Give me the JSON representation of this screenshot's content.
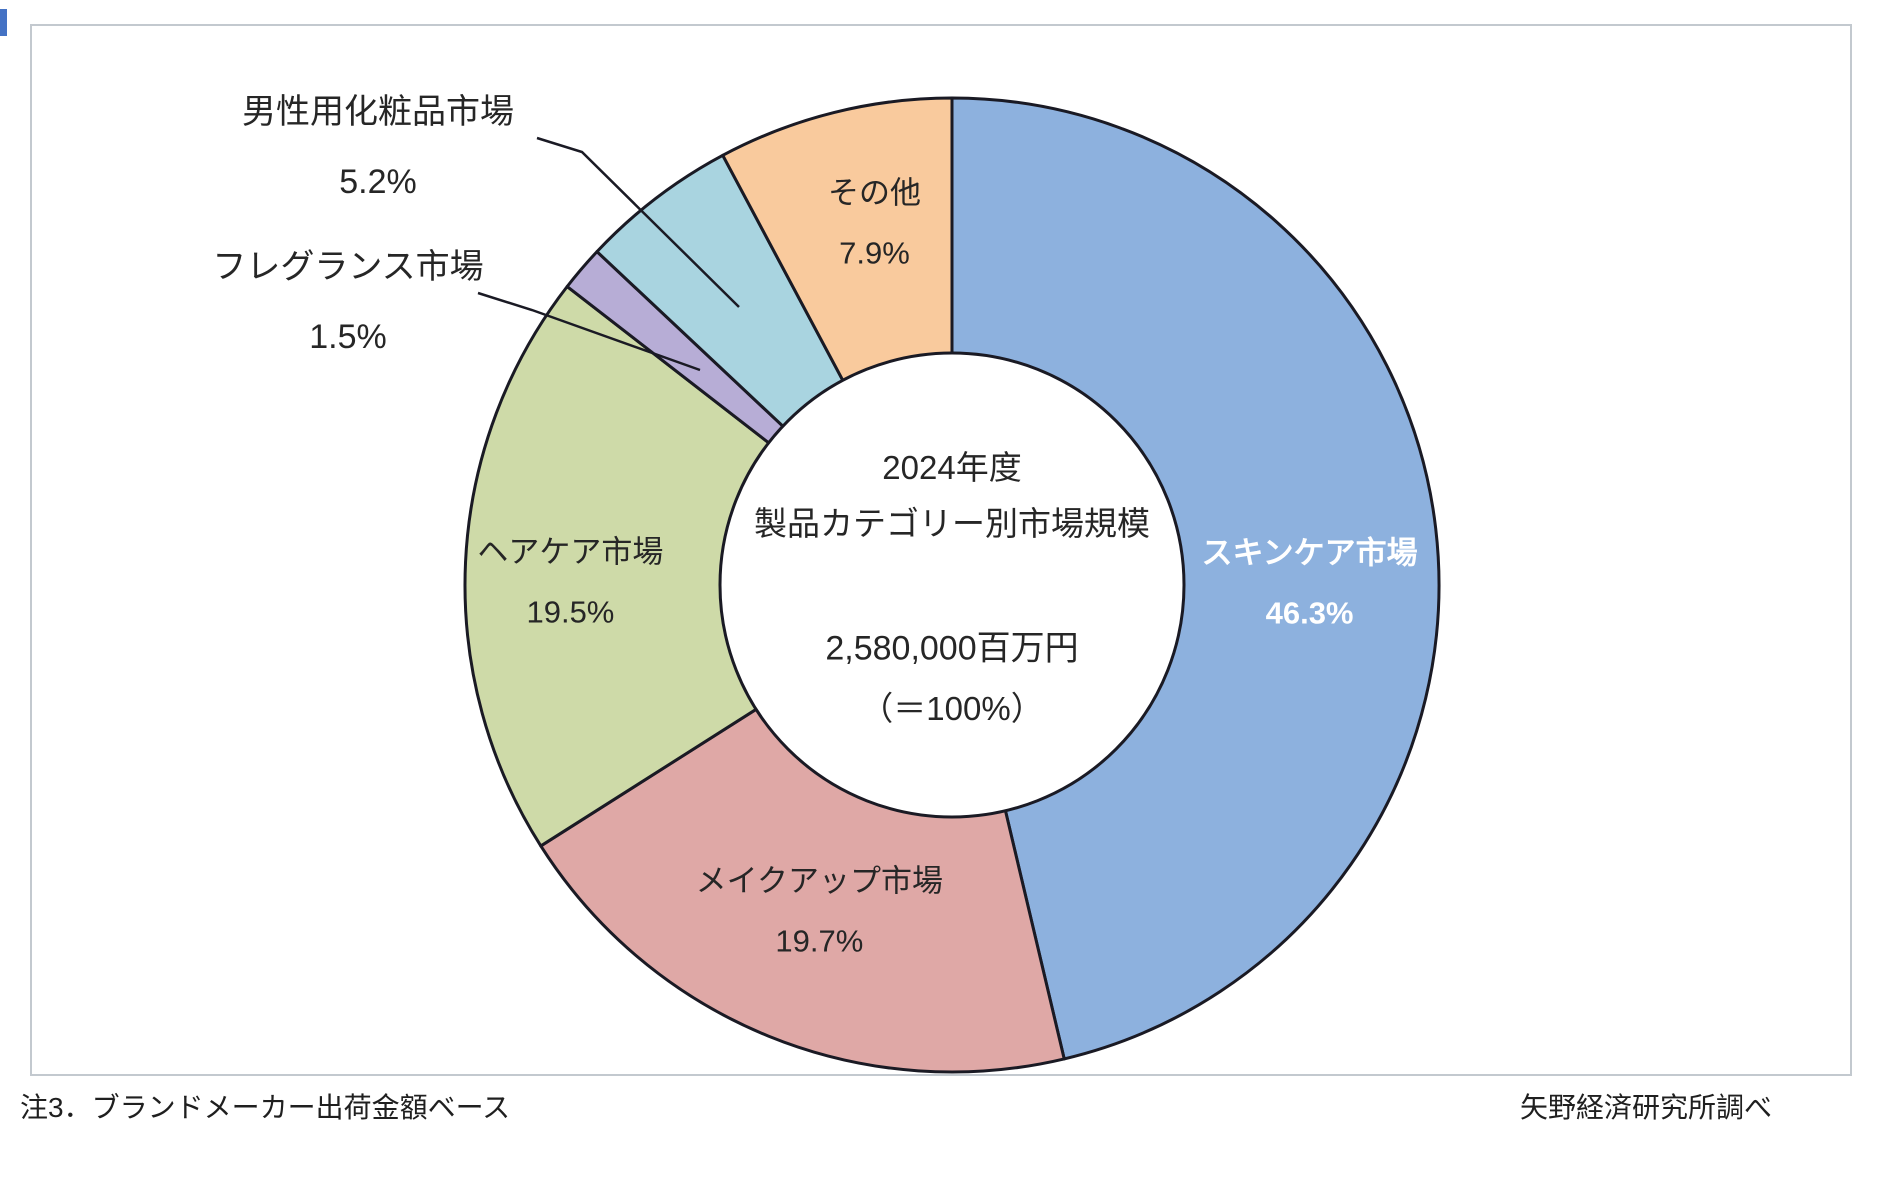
{
  "page": {
    "background": "#ffffff"
  },
  "notes": {
    "left": "注3．ブランドメーカー出荷金額ベース",
    "right": "矢野経済研究所調べ"
  },
  "chart_data": {
    "type": "pie",
    "subtype": "donut",
    "start_angle_deg": 0,
    "direction": "clockwise",
    "outline_color": "#1A1A24",
    "center_text": {
      "line1": "2024年度",
      "line2": "製品カテゴリー別市場規模",
      "line3": "2,580,000百万円",
      "line4": "（＝100%）"
    },
    "segments": [
      {
        "label": "スキンケア市場",
        "value_pct": 46.3,
        "color": "#8DB1DE",
        "label_text_color": "#FFFFFF",
        "emphasis": "bold"
      },
      {
        "label": "メイクアップ市場",
        "value_pct": 19.7,
        "color": "#DFA8A6",
        "label_text_color": "#262626"
      },
      {
        "label": "ヘアケア市場",
        "value_pct": 19.5,
        "color": "#CEDAA8",
        "label_text_color": "#262626"
      },
      {
        "label": "フレグランス市場",
        "value_pct": 1.5,
        "color": "#B7ADD6",
        "label_text_color": "#262626"
      },
      {
        "label": "男性用化粧品市場",
        "value_pct": 5.2,
        "color": "#A9D4E0",
        "label_text_color": "#262626"
      },
      {
        "label": "その他",
        "value_pct": 7.9,
        "color": "#F9CA9D",
        "label_text_color": "#262626"
      }
    ]
  }
}
